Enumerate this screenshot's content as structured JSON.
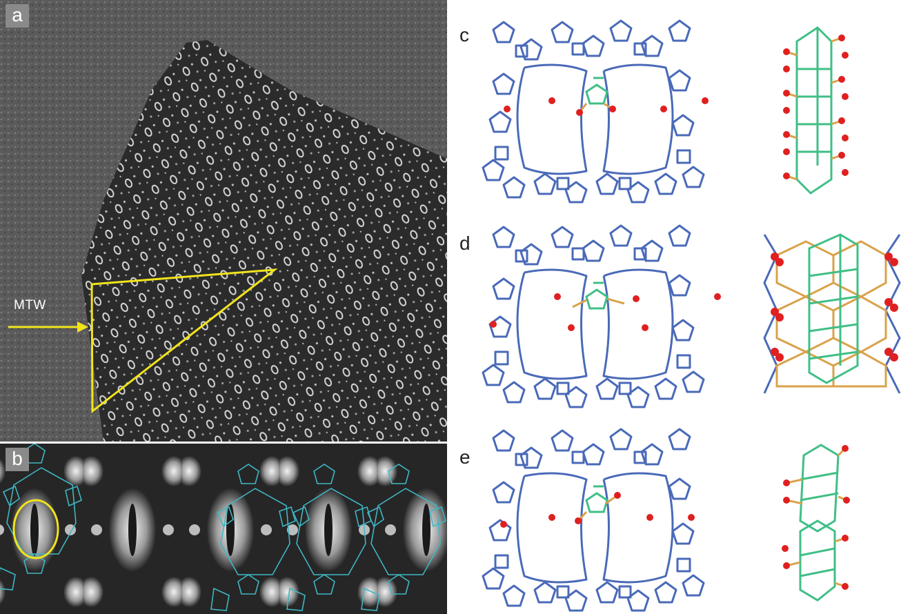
{
  "panels": {
    "a": {
      "label": "a",
      "annotation": "MTW"
    },
    "b": {
      "label": "b"
    },
    "c": {
      "label": "c"
    },
    "d": {
      "label": "d"
    },
    "e": {
      "label": "e"
    }
  },
  "colors": {
    "framework": "#4a6ab8",
    "highlight_ring": "#3fbf86",
    "linker": "#d9a24a",
    "oxygen": "#e02020",
    "overlay_framework": "#3fb7c4",
    "annotation": "#f2e41c"
  }
}
